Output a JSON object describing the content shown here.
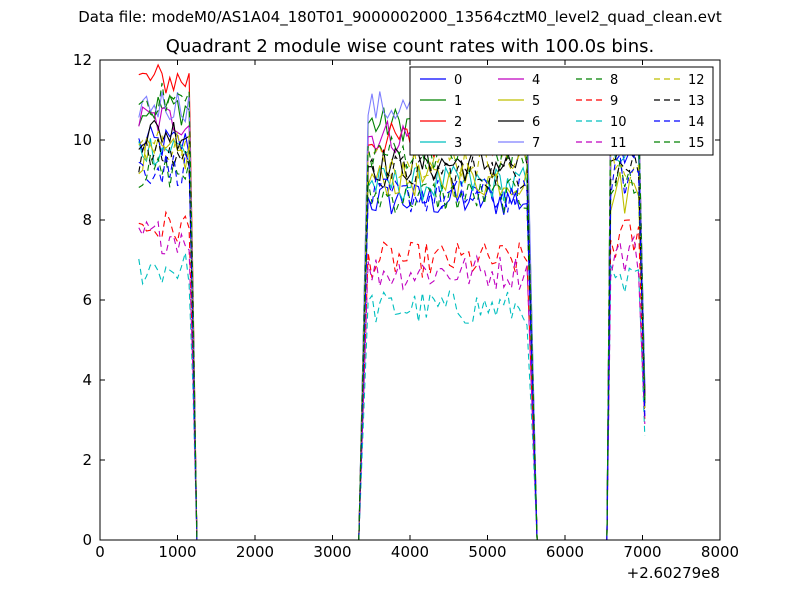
{
  "header": {
    "file_caption": "Data file: modeM0/AS1A04_180T01_9000002000_13564cztM0_level2_quad_clean.evt"
  },
  "chart_data": {
    "type": "line",
    "title": "Quadrant 2 module wise count rates with 100.0s bins.",
    "xlabel": "",
    "ylabel": "",
    "x_offset_label": "+2.60279e8",
    "xlim": [
      0,
      8000
    ],
    "ylim": [
      0,
      12
    ],
    "x_ticks": [
      0,
      1000,
      2000,
      3000,
      4000,
      5000,
      6000,
      7000,
      8000
    ],
    "y_ticks": [
      0,
      2,
      4,
      6,
      8,
      10,
      12
    ],
    "grid": false,
    "legend_position": "top-right",
    "legend_columns": 4,
    "segments": [
      {
        "x_start": 500,
        "x_end": 1150
      },
      {
        "x_start": 3460,
        "x_end": 5520
      },
      {
        "x_start": 6590,
        "x_end": 6950
      }
    ],
    "gaps": [
      {
        "rise_start": 3340,
        "fall_end": 5640
      },
      {
        "rise_start": 6540,
        "fall_end": 7030
      }
    ],
    "series": [
      {
        "name": "0",
        "color": "#0000ff",
        "dashed": false,
        "levels": [
          9.9,
          8.5,
          10.0
        ],
        "final": 3.8
      },
      {
        "name": "1",
        "color": "#008000",
        "dashed": false,
        "levels": [
          10.8,
          10.4,
          10.6
        ],
        "final": 3.5
      },
      {
        "name": "2",
        "color": "#ff0000",
        "dashed": false,
        "levels": [
          11.5,
          10.0,
          10.5
        ],
        "final": 3.6
      },
      {
        "name": "3",
        "color": "#00bfbf",
        "dashed": false,
        "levels": [
          9.8,
          8.9,
          9.9
        ],
        "final": 3.4
      },
      {
        "name": "4",
        "color": "#bf00bf",
        "dashed": false,
        "levels": [
          10.5,
          10.1,
          10.9
        ],
        "final": 3.7
      },
      {
        "name": "5",
        "color": "#bfbf00",
        "dashed": false,
        "levels": [
          9.6,
          9.0,
          8.7
        ],
        "final": 3.3
      },
      {
        "name": "6",
        "color": "#000000",
        "dashed": false,
        "levels": [
          10.2,
          9.4,
          9.6
        ],
        "final": 3.6
      },
      {
        "name": "7",
        "color": "#7f7fff",
        "dashed": false,
        "levels": [
          10.9,
          10.8,
          11.0
        ],
        "final": 3.9
      },
      {
        "name": "8",
        "color": "#008000",
        "dashed": true,
        "levels": [
          9.2,
          8.6,
          9.0
        ],
        "final": 3.2
      },
      {
        "name": "9",
        "color": "#ff0000",
        "dashed": true,
        "levels": [
          7.8,
          7.0,
          7.5
        ],
        "final": 3.0
      },
      {
        "name": "10",
        "color": "#00bfbf",
        "dashed": true,
        "levels": [
          6.8,
          5.8,
          6.3
        ],
        "final": 2.6
      },
      {
        "name": "11",
        "color": "#bf00bf",
        "dashed": true,
        "levels": [
          7.6,
          6.7,
          7.1
        ],
        "final": 2.9
      },
      {
        "name": "12",
        "color": "#bfbf00",
        "dashed": true,
        "levels": [
          9.9,
          9.5,
          9.4
        ],
        "final": 3.3
      },
      {
        "name": "13",
        "color": "#000000",
        "dashed": true,
        "levels": [
          9.6,
          9.2,
          9.4
        ],
        "final": 3.4
      },
      {
        "name": "14",
        "color": "#0000ff",
        "dashed": true,
        "levels": [
          9.3,
          8.6,
          9.1
        ],
        "final": 3.1
      },
      {
        "name": "15",
        "color": "#008000",
        "dashed": true,
        "levels": [
          11.0,
          9.7,
          10.7
        ],
        "final": 3.5
      }
    ]
  }
}
